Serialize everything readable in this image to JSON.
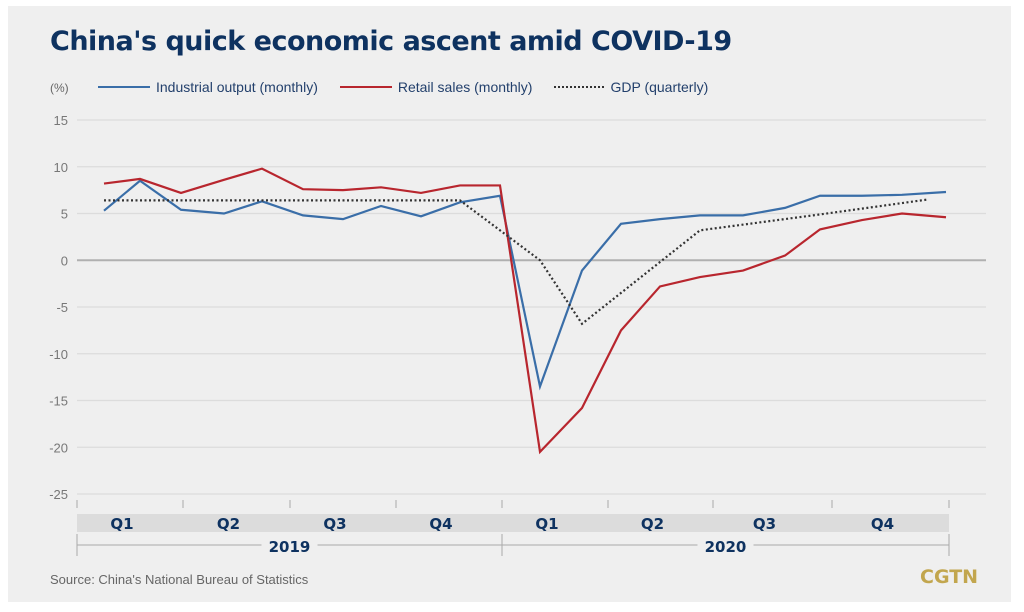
{
  "chart_data": {
    "type": "line",
    "title": "China's quick economic ascent amid COVID-19",
    "ylabel": "(%)",
    "xlabel": "",
    "ylim": [
      -25,
      15
    ],
    "yticks": [
      15,
      10,
      5,
      0,
      -5,
      -10,
      -15,
      -20,
      -25
    ],
    "grid": true,
    "legend_position": "top-left",
    "x_months": [
      "2019-01/02",
      "2019-03",
      "2019-04",
      "2019-05",
      "2019-06",
      "2019-07",
      "2019-08",
      "2019-09",
      "2019-10",
      "2019-11",
      "2019-12",
      "2020-01/02",
      "2020-03",
      "2020-04",
      "2020-05",
      "2020-06",
      "2020-07",
      "2020-08",
      "2020-09",
      "2020-10",
      "2020-11",
      "2020-12"
    ],
    "series": [
      {
        "name": "Industrial output (monthly)",
        "color": "#3a6ea8",
        "style": "solid",
        "values": [
          5.3,
          8.5,
          5.4,
          5.0,
          6.3,
          4.8,
          4.4,
          5.8,
          4.7,
          6.2,
          6.9,
          -13.5,
          -1.1,
          3.9,
          4.4,
          4.8,
          4.8,
          5.6,
          6.9,
          6.9,
          7.0,
          7.3
        ]
      },
      {
        "name": "Retail sales (monthly)",
        "color": "#b8262e",
        "style": "solid",
        "values": [
          8.2,
          8.7,
          7.2,
          8.6,
          9.8,
          7.6,
          7.5,
          7.8,
          7.2,
          8.0,
          8.0,
          -20.5,
          -15.8,
          -7.5,
          -2.8,
          -1.8,
          -1.1,
          0.5,
          3.3,
          4.3,
          5.0,
          4.6
        ]
      },
      {
        "name": "GDP (quarterly)",
        "color": "#333333",
        "style": "dotted",
        "points": [
          {
            "x": "2019-01/02",
            "value": 6.4
          },
          {
            "x": "2019-11",
            "value": 6.4
          },
          {
            "x": "2020-01/02",
            "value": 0.0
          },
          {
            "x": "2020-03",
            "value": -6.8
          },
          {
            "x": "2020-06",
            "value": 3.2
          },
          {
            "x": "2020-09",
            "value": 4.9
          },
          {
            "x": "2020-12",
            "value": 6.5
          }
        ]
      }
    ],
    "x_groups": [
      {
        "year": "2019",
        "quarters": [
          "Q1",
          "Q2",
          "Q3",
          "Q4"
        ]
      },
      {
        "year": "2020",
        "quarters": [
          "Q1",
          "Q2",
          "Q3",
          "Q4"
        ]
      }
    ]
  },
  "source": "Source: China's National Bureau of Statistics",
  "logo": "CGTN"
}
